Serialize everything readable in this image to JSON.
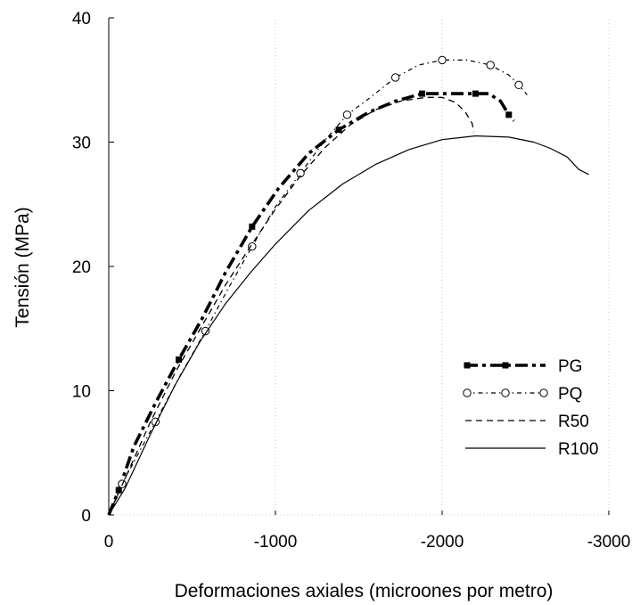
{
  "chart_data": {
    "type": "line",
    "xlabel": "Deformaciones axiales (microones por metro)",
    "ylabel": "Tensión (MPa)",
    "xlim": [
      0,
      -3000
    ],
    "ylim": [
      0,
      40
    ],
    "xticks": [
      0,
      -1000,
      -2000,
      -3000
    ],
    "xtick_labels": [
      "0",
      "-1000",
      "-2000",
      "-3000"
    ],
    "yticks": [
      0,
      10,
      20,
      30,
      40
    ],
    "ytick_labels": [
      "0",
      "10",
      "20",
      "30",
      "40"
    ],
    "grid": false,
    "legend_position": "right",
    "series": [
      {
        "name": "PG",
        "style": "dash-dot-thick-square",
        "color": "#000000",
        "x": [
          0,
          -60,
          -150,
          -280,
          -420,
          -560,
          -700,
          -860,
          -1020,
          -1200,
          -1380,
          -1560,
          -1720,
          -1880,
          -2000,
          -2100,
          -2200,
          -2280,
          -2350,
          -2400,
          -2430
        ],
        "y": [
          0,
          2,
          5.5,
          9,
          12.5,
          15.8,
          19.5,
          23.2,
          26.3,
          29.1,
          31,
          32.4,
          33.3,
          33.9,
          33.9,
          33.9,
          33.9,
          33.9,
          33.3,
          32.2,
          31.7
        ]
      },
      {
        "name": "PQ",
        "style": "dash-dot-circle",
        "color": "#000000",
        "x": [
          0,
          -80,
          -160,
          -280,
          -420,
          -580,
          -720,
          -860,
          -1000,
          -1150,
          -1300,
          -1430,
          -1570,
          -1720,
          -1860,
          -2000,
          -2150,
          -2290,
          -2400,
          -2460,
          -2510
        ],
        "y": [
          0,
          2.5,
          4.5,
          7.5,
          11,
          14.8,
          18.3,
          21.6,
          24.8,
          27.5,
          30.2,
          32.2,
          33.6,
          35.2,
          36.2,
          36.6,
          36.6,
          36.2,
          35.4,
          34.6,
          33.8
        ]
      },
      {
        "name": "R50",
        "style": "dashed",
        "color": "#000000",
        "x": [
          0,
          -100,
          -250,
          -400,
          -550,
          -700,
          -850,
          -1000,
          -1150,
          -1300,
          -1450,
          -1600,
          -1750,
          -1900,
          -2000,
          -2080,
          -2140,
          -2180,
          -2190
        ],
        "y": [
          0,
          3,
          7.5,
          11.5,
          15,
          18.5,
          21.6,
          24.6,
          27.3,
          29.6,
          31.4,
          32.6,
          33.3,
          33.6,
          33.6,
          33.2,
          32.4,
          31.5,
          30.8
        ]
      },
      {
        "name": "R100",
        "style": "solid",
        "color": "#000000",
        "x": [
          0,
          -100,
          -250,
          -400,
          -550,
          -700,
          -850,
          -1000,
          -1200,
          -1400,
          -1600,
          -1800,
          -2000,
          -2200,
          -2400,
          -2550,
          -2650,
          -2750,
          -2820,
          -2880
        ],
        "y": [
          0,
          2.2,
          6.5,
          10.5,
          14,
          17,
          19.5,
          21.8,
          24.5,
          26.6,
          28.2,
          29.4,
          30.2,
          30.5,
          30.4,
          30,
          29.5,
          28.8,
          27.8,
          27.4
        ]
      }
    ]
  }
}
